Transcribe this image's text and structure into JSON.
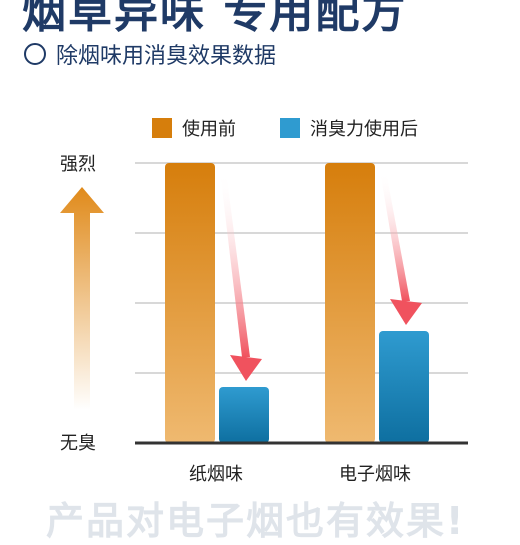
{
  "header": {
    "title": "烟草异味 专用配方",
    "subtitle": "除烟味用消臭效果数据",
    "footer_partial": "产品对电子烟也有效果!"
  },
  "chart_data": {
    "type": "bar",
    "title": "",
    "categories": [
      "纸烟味",
      "电子烟味"
    ],
    "series": [
      {
        "name": "使用前",
        "values": [
          100,
          100
        ]
      },
      {
        "name": "消臭力使用后",
        "values": [
          20,
          40
        ]
      }
    ],
    "ylim": [
      0,
      100
    ],
    "y_top_label": "强烈",
    "y_bottom_label": "无臭",
    "grid": true,
    "legend_position": "top-right",
    "colors": {
      "before_top": "#D67E0C",
      "before_bottom": "#EFB970",
      "after_top": "#2F9BD0",
      "after_bottom": "#0E6FA0",
      "arrow": "#F0525E",
      "up_arrow": "#E08A1A",
      "axis": "#333333",
      "grid": "#d8d8d8"
    }
  }
}
